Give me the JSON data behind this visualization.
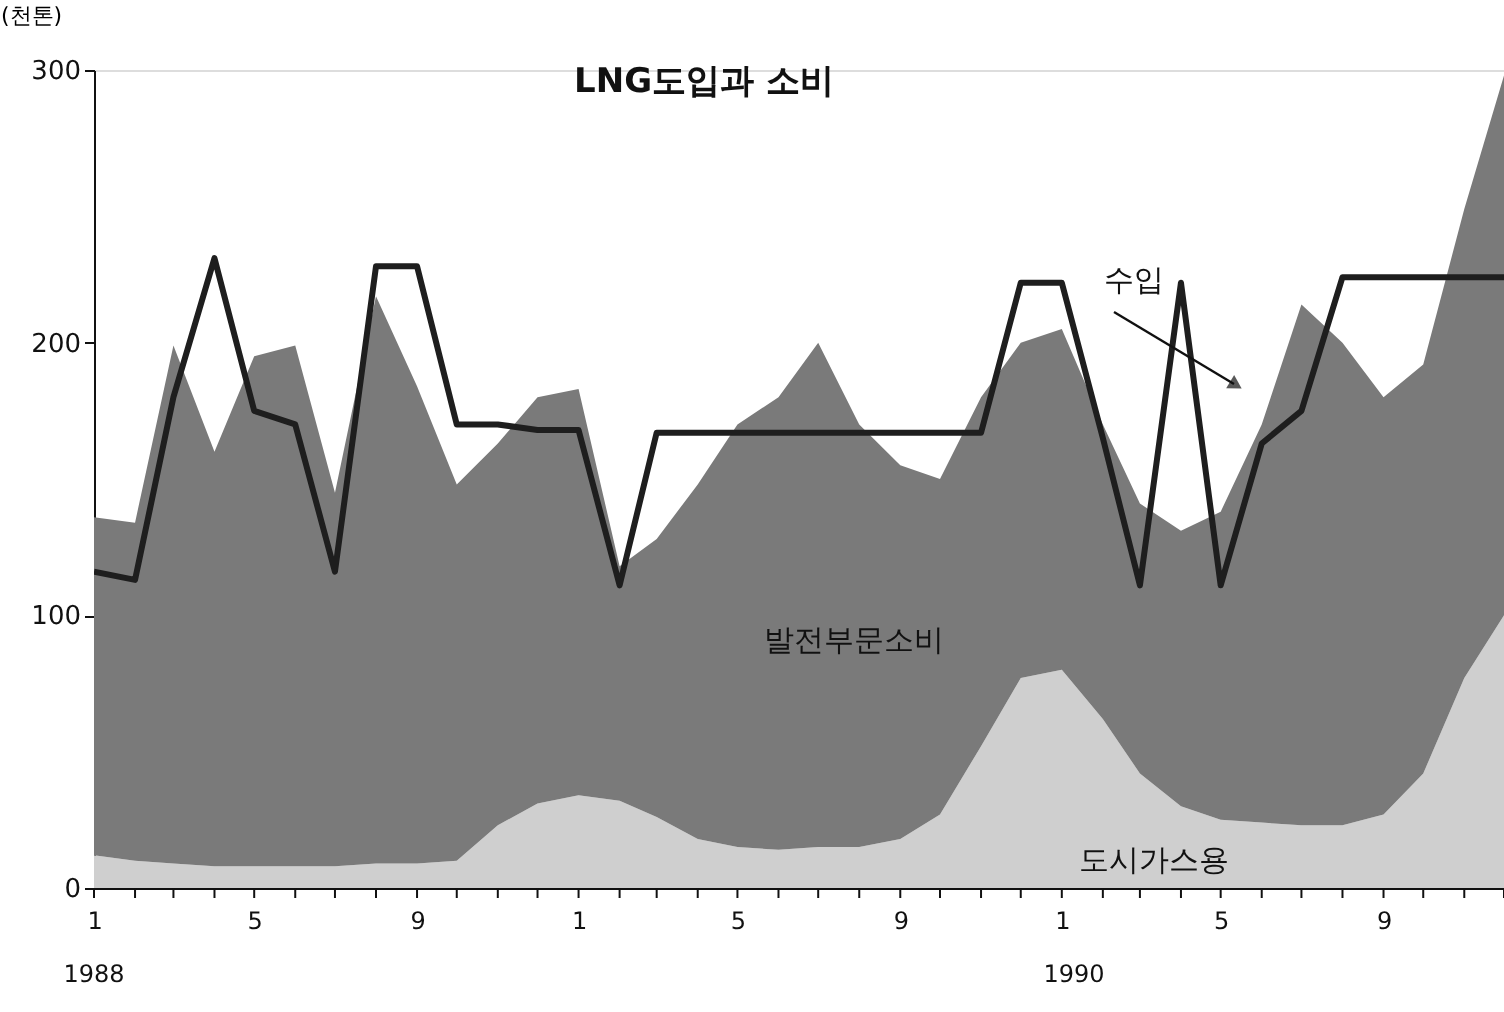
{
  "chart_data": {
    "type": "area",
    "title": "LNG도입과 소비",
    "ylabel": "(천톤)",
    "x": [
      "1988-01",
      "1988-02",
      "1988-03",
      "1988-04",
      "1988-05",
      "1988-06",
      "1988-07",
      "1988-08",
      "1988-09",
      "1988-10",
      "1988-11",
      "1988-12",
      "1989-01",
      "1989-02",
      "1989-03",
      "1989-04",
      "1989-05",
      "1989-06",
      "1989-07",
      "1989-08",
      "1989-09",
      "1989-10",
      "1989-11",
      "1989-12",
      "1990-01",
      "1990-02",
      "1990-03",
      "1990-04",
      "1990-05",
      "1990-06",
      "1990-07",
      "1990-08",
      "1990-09",
      "1990-10",
      "1990-11",
      "1990-12"
    ],
    "stacked": true,
    "series": [
      {
        "name": "도시가스용",
        "color": "#cfcfcf",
        "values": [
          12,
          10,
          9,
          8,
          8,
          8,
          8,
          9,
          9,
          10,
          23,
          31,
          34,
          32,
          26,
          18,
          15,
          14,
          15,
          15,
          18,
          27,
          52,
          77,
          80,
          62,
          42,
          30,
          25,
          24,
          23,
          23,
          27,
          42,
          77,
          100
        ]
      },
      {
        "name": "발전부문소비",
        "color": "#7a7a7a",
        "values": [
          124,
          124,
          190,
          152,
          187,
          191,
          137,
          208,
          175,
          138,
          140,
          149,
          149,
          86,
          102,
          130,
          155,
          166,
          185,
          155,
          137,
          123,
          128,
          123,
          125,
          108,
          99,
          101,
          113,
          146,
          191,
          177,
          153,
          150,
          172,
          198
        ]
      },
      {
        "name": "수입",
        "type": "line",
        "line_style": "solid",
        "color": "#1e1e1e",
        "values": [
          116,
          113,
          180,
          231,
          175,
          170,
          116,
          228,
          228,
          170,
          170,
          168,
          168,
          111,
          167,
          167,
          167,
          167,
          167,
          167,
          167,
          167,
          167,
          222,
          222,
          165,
          111,
          222,
          111,
          163,
          175,
          224,
          224,
          224,
          224,
          224
        ]
      }
    ],
    "xlim": [
      "1988-01",
      "1990-12"
    ],
    "ylim": [
      0,
      300
    ],
    "yticks": [
      0,
      100,
      200,
      300
    ],
    "xticks": [
      {
        "value": "1988-01",
        "label": "1"
      },
      {
        "value": "1988-02",
        "label": null
      },
      {
        "value": "1988-03",
        "label": null
      },
      {
        "value": "1988-04",
        "label": null
      },
      {
        "value": "1988-05",
        "label": "5"
      },
      {
        "value": "1988-06",
        "label": null
      },
      {
        "value": "1988-07",
        "label": null
      },
      {
        "value": "1988-08",
        "label": null
      },
      {
        "value": "1988-09",
        "label": "9"
      },
      {
        "value": "1988-10",
        "label": null
      },
      {
        "value": "1988-11",
        "label": null
      },
      {
        "value": "1988-12",
        "label": null
      },
      {
        "value": "1989-01",
        "label": "1"
      },
      {
        "value": "1989-02",
        "label": null
      },
      {
        "value": "1989-03",
        "label": null
      },
      {
        "value": "1989-04",
        "label": null
      },
      {
        "value": "1989-05",
        "label": "5"
      },
      {
        "value": "1989-06",
        "label": null
      },
      {
        "value": "1989-07",
        "label": null
      },
      {
        "value": "1989-08",
        "label": null
      },
      {
        "value": "1989-09",
        "label": "9"
      },
      {
        "value": "1989-10",
        "label": null
      },
      {
        "value": "1989-11",
        "label": null
      },
      {
        "value": "1989-12",
        "label": null
      },
      {
        "value": "1990-01",
        "label": "1"
      },
      {
        "value": "1990-02",
        "label": null
      },
      {
        "value": "1990-03",
        "label": null
      },
      {
        "value": "1990-04",
        "label": null
      },
      {
        "value": "1990-05",
        "label": "5"
      },
      {
        "value": "1990-06",
        "label": null
      },
      {
        "value": "1990-07",
        "label": null
      },
      {
        "value": "1990-08",
        "label": null
      },
      {
        "value": "1990-09",
        "label": "9"
      },
      {
        "value": "1990-10",
        "label": null
      },
      {
        "value": "1990-11",
        "label": null
      },
      {
        "value": "1990-12",
        "label": null
      }
    ],
    "annotations": [
      "1988",
      "1990"
    ],
    "grid": false
  }
}
